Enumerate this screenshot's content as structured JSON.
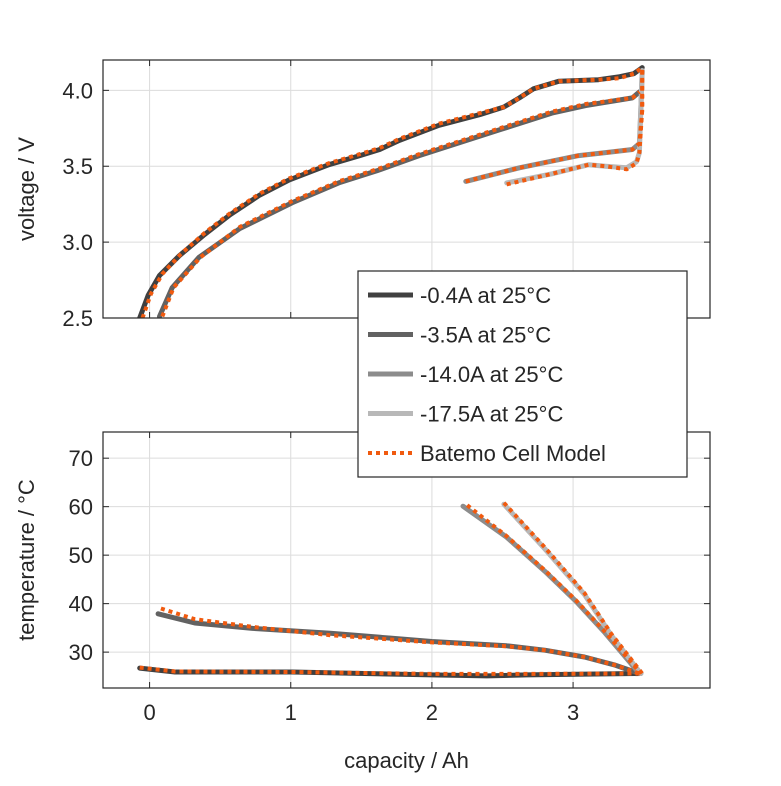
{
  "legend": {
    "placement": "inside-top-panel-bottom-right",
    "entries": [
      {
        "label": "-0.4A at 25°C",
        "color": "#404040",
        "style": "solid"
      },
      {
        "label": "-3.5A at 25°C",
        "color": "#626262",
        "style": "solid"
      },
      {
        "label": "-14.0A at 25°C",
        "color": "#8c8c8c",
        "style": "solid"
      },
      {
        "label": "-17.5A at 25°C",
        "color": "#b8b8b8",
        "style": "solid"
      },
      {
        "label": "Batemo Cell Model",
        "color": "#f05a0f",
        "style": "dotted"
      }
    ]
  },
  "chart_data": [
    {
      "type": "line",
      "panel": "top",
      "xlabel": "",
      "ylabel": "voltage / V",
      "xlim": [
        -0.33,
        3.97
      ],
      "ylim": [
        2.5,
        4.2
      ],
      "xticks": [
        0,
        1,
        2,
        3
      ],
      "xtick_labels": [],
      "yticks": [
        2.5,
        3.0,
        3.5,
        4.0
      ],
      "ytick_labels": [
        "2.5",
        "3.0",
        "3.5",
        "4.0"
      ],
      "grid": true,
      "series": [
        {
          "name": "-0.4A at 25°C",
          "color": "#404040",
          "x": [
            -0.07,
            -0.01,
            0.07,
            0.21,
            0.39,
            0.57,
            0.78,
            0.99,
            1.27,
            1.49,
            1.63,
            1.77,
            2.05,
            2.34,
            2.51,
            2.62,
            2.72,
            2.9,
            3.18,
            3.33,
            3.43,
            3.49
          ],
          "y": [
            2.5,
            2.65,
            2.78,
            2.91,
            3.05,
            3.18,
            3.31,
            3.41,
            3.51,
            3.57,
            3.61,
            3.67,
            3.77,
            3.84,
            3.89,
            3.95,
            4.01,
            4.06,
            4.07,
            4.09,
            4.11,
            4.15
          ]
        },
        {
          "name": "-3.5A at 25°C",
          "color": "#626262",
          "x": [
            0.07,
            0.16,
            0.35,
            0.64,
            1.01,
            1.34,
            1.61,
            1.91,
            2.48,
            2.85,
            3.09,
            3.42,
            3.47
          ],
          "y": [
            2.51,
            2.7,
            2.9,
            3.09,
            3.26,
            3.39,
            3.47,
            3.57,
            3.74,
            3.85,
            3.9,
            3.95,
            3.99
          ]
        },
        {
          "name": "-14.0A at 25°C",
          "color": "#8c8c8c",
          "x": [
            2.24,
            2.62,
            3.04,
            3.23,
            3.42,
            3.47,
            3.48,
            3.49
          ],
          "y": [
            3.4,
            3.49,
            3.57,
            3.59,
            3.61,
            3.65,
            3.87,
            4.13
          ]
        },
        {
          "name": "-17.5A at 25°C",
          "color": "#b8b8b8",
          "x": [
            2.53,
            2.85,
            3.11,
            3.23,
            3.38,
            3.45,
            3.47,
            3.48,
            3.49
          ],
          "y": [
            3.39,
            3.45,
            3.51,
            3.5,
            3.49,
            3.53,
            3.59,
            3.87,
            4.13
          ]
        },
        {
          "name": "Batemo Cell Model",
          "color": "#f05a0f",
          "dotted": true,
          "x": [
            -0.05,
            0.01,
            0.09,
            0.22,
            0.39,
            0.57,
            0.78,
            0.99,
            1.27,
            1.49,
            1.63,
            1.77,
            2.05,
            2.34,
            2.51,
            2.62,
            2.72,
            2.9,
            3.18,
            3.33,
            3.43,
            3.49
          ],
          "y": [
            2.5,
            2.66,
            2.79,
            2.92,
            3.06,
            3.19,
            3.32,
            3.42,
            3.52,
            3.58,
            3.62,
            3.68,
            3.78,
            3.85,
            3.89,
            3.95,
            4.01,
            4.06,
            4.07,
            4.08,
            4.11,
            4.15
          ]
        },
        {
          "name": "Batemo Cell Model",
          "color": "#f05a0f",
          "dotted": true,
          "x": [
            0.09,
            0.17,
            0.36,
            0.64,
            1.01,
            1.34,
            1.61,
            1.91,
            2.48,
            2.85,
            3.09,
            3.42,
            3.47
          ],
          "y": [
            2.51,
            2.7,
            2.9,
            3.1,
            3.27,
            3.4,
            3.48,
            3.58,
            3.75,
            3.86,
            3.91,
            3.95,
            3.99
          ]
        },
        {
          "name": "Batemo Cell Model",
          "color": "#f05a0f",
          "dotted": true,
          "x": [
            2.24,
            2.62,
            3.04,
            3.23,
            3.42,
            3.47,
            3.49,
            3.49
          ],
          "y": [
            3.4,
            3.49,
            3.57,
            3.59,
            3.61,
            3.65,
            3.87,
            4.15
          ]
        },
        {
          "name": "Batemo Cell Model",
          "color": "#f05a0f",
          "dotted": true,
          "x": [
            2.53,
            2.85,
            3.11,
            3.23,
            3.38,
            3.45,
            3.47,
            3.49,
            3.49
          ],
          "y": [
            3.38,
            3.45,
            3.51,
            3.5,
            3.48,
            3.52,
            3.59,
            3.87,
            4.15
          ]
        }
      ]
    },
    {
      "type": "line",
      "panel": "bottom",
      "xlabel": "capacity / Ah",
      "ylabel": "temperature / °C",
      "xlim": [
        -0.33,
        3.97
      ],
      "ylim": [
        22.6,
        75.4
      ],
      "xticks": [
        0,
        1,
        2,
        3
      ],
      "xtick_labels": [
        "0",
        "1",
        "2",
        "3"
      ],
      "yticks": [
        30,
        40,
        50,
        60,
        70
      ],
      "ytick_labels": [
        "30",
        "40",
        "50",
        "60",
        "70"
      ],
      "grid": true,
      "series": [
        {
          "name": "-0.4A at 25°C",
          "color": "#404040",
          "x": [
            -0.07,
            0.18,
            1.01,
            2.0,
            2.39,
            2.67,
            3.48
          ],
          "y": [
            26.7,
            25.9,
            25.9,
            25.3,
            25.1,
            25.3,
            25.6
          ]
        },
        {
          "name": "-3.5A at 25°C",
          "color": "#626262",
          "x": [
            0.06,
            0.32,
            0.73,
            1.28,
            2.0,
            2.53,
            2.8,
            3.08,
            3.3,
            3.47
          ],
          "y": [
            37.9,
            36.0,
            34.9,
            33.9,
            32.2,
            31.3,
            30.4,
            29.0,
            27.3,
            25.6
          ]
        },
        {
          "name": "-14.0A at 25°C",
          "color": "#8c8c8c",
          "x": [
            2.22,
            2.53,
            2.8,
            3.02,
            3.22,
            3.47
          ],
          "y": [
            60.1,
            53.7,
            46.7,
            40.5,
            34.2,
            25.6
          ]
        },
        {
          "name": "-17.5A at 25°C",
          "color": "#b8b8b8",
          "x": [
            2.51,
            2.8,
            3.08,
            3.27,
            3.48
          ],
          "y": [
            60.5,
            51.3,
            41.9,
            33.5,
            25.6
          ]
        },
        {
          "name": "Batemo Cell Model",
          "color": "#f05a0f",
          "dotted": true,
          "x": [
            -0.07,
            0.18,
            1.01,
            2.0,
            2.39,
            2.67,
            3.48
          ],
          "y": [
            26.8,
            26.0,
            25.9,
            25.5,
            25.5,
            25.5,
            25.6
          ]
        },
        {
          "name": "Batemo Cell Model",
          "color": "#f05a0f",
          "dotted": true,
          "x": [
            0.08,
            0.32,
            0.73,
            1.28,
            2.0,
            2.53,
            2.8,
            3.08,
            3.3,
            3.47
          ],
          "y": [
            39.0,
            36.8,
            35.2,
            33.5,
            32.0,
            31.2,
            30.4,
            29.0,
            27.3,
            25.6
          ]
        },
        {
          "name": "Batemo Cell Model",
          "color": "#f05a0f",
          "dotted": true,
          "x": [
            2.25,
            2.53,
            2.8,
            3.02,
            3.22,
            3.48
          ],
          "y": [
            60.3,
            53.9,
            46.9,
            40.7,
            34.4,
            25.6
          ]
        },
        {
          "name": "Batemo Cell Model",
          "color": "#f05a0f",
          "dotted": true,
          "x": [
            2.51,
            2.8,
            3.08,
            3.27,
            3.49
          ],
          "y": [
            60.8,
            51.6,
            42.2,
            33.8,
            25.6
          ]
        }
      ]
    }
  ]
}
